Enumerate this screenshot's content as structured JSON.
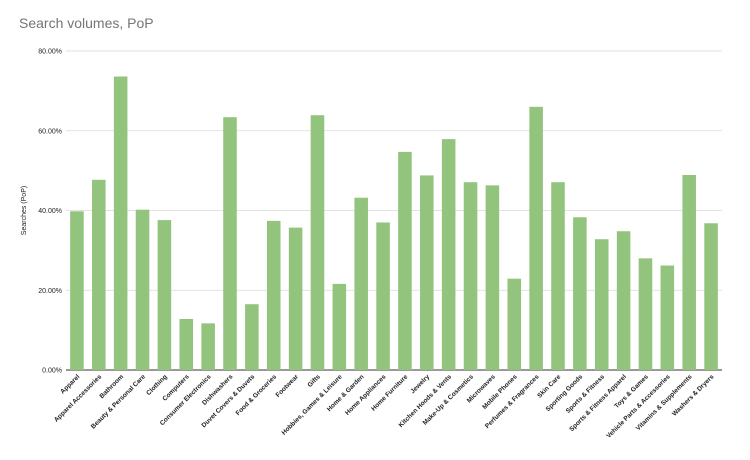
{
  "chart_data": {
    "type": "bar",
    "title": "Search volumes, PoP",
    "xlabel": "",
    "ylabel": "Searches (PoP)",
    "ylim": [
      0,
      80
    ],
    "yticks": [
      "0.00%",
      "20.00%",
      "40.00%",
      "60.00%",
      "80.00%"
    ],
    "grid": true,
    "bar_color": "#93c47d",
    "categories": [
      "Apparel",
      "Apparel Accessories",
      "Bathroom",
      "Beauty & Personal Care",
      "Clothing",
      "Computers",
      "Consumer Electronics",
      "Dishwashers",
      "Duvet Covers & Duvets",
      "Food & Groceries",
      "Footwear",
      "Gifts",
      "Hobbies, Games & Leisure",
      "Home & Garden",
      "Home Appliances",
      "Home Furniture",
      "Jewelry",
      "Kitchen Hoods & Vents",
      "Make-Up & Cosmetics",
      "Microwaves",
      "Mobile Phones",
      "Perfumes & Fragrances",
      "Skin Care",
      "Sporting Goods",
      "Sports & Fitness",
      "Sports & Fitness Apparel",
      "Toys & Games",
      "Vehicle Parts & Accessories",
      "Vitamins & Supplements",
      "Washers & Dryers"
    ],
    "values": [
      39.8,
      47.7,
      73.6,
      40.2,
      37.6,
      12.8,
      11.7,
      63.4,
      16.5,
      37.4,
      35.7,
      63.9,
      21.6,
      43.2,
      37.0,
      54.7,
      48.8,
      57.9,
      47.1,
      46.3,
      22.9,
      66.0,
      47.1,
      38.3,
      32.8,
      34.8,
      28.0,
      26.2,
      48.9,
      36.8
    ]
  }
}
